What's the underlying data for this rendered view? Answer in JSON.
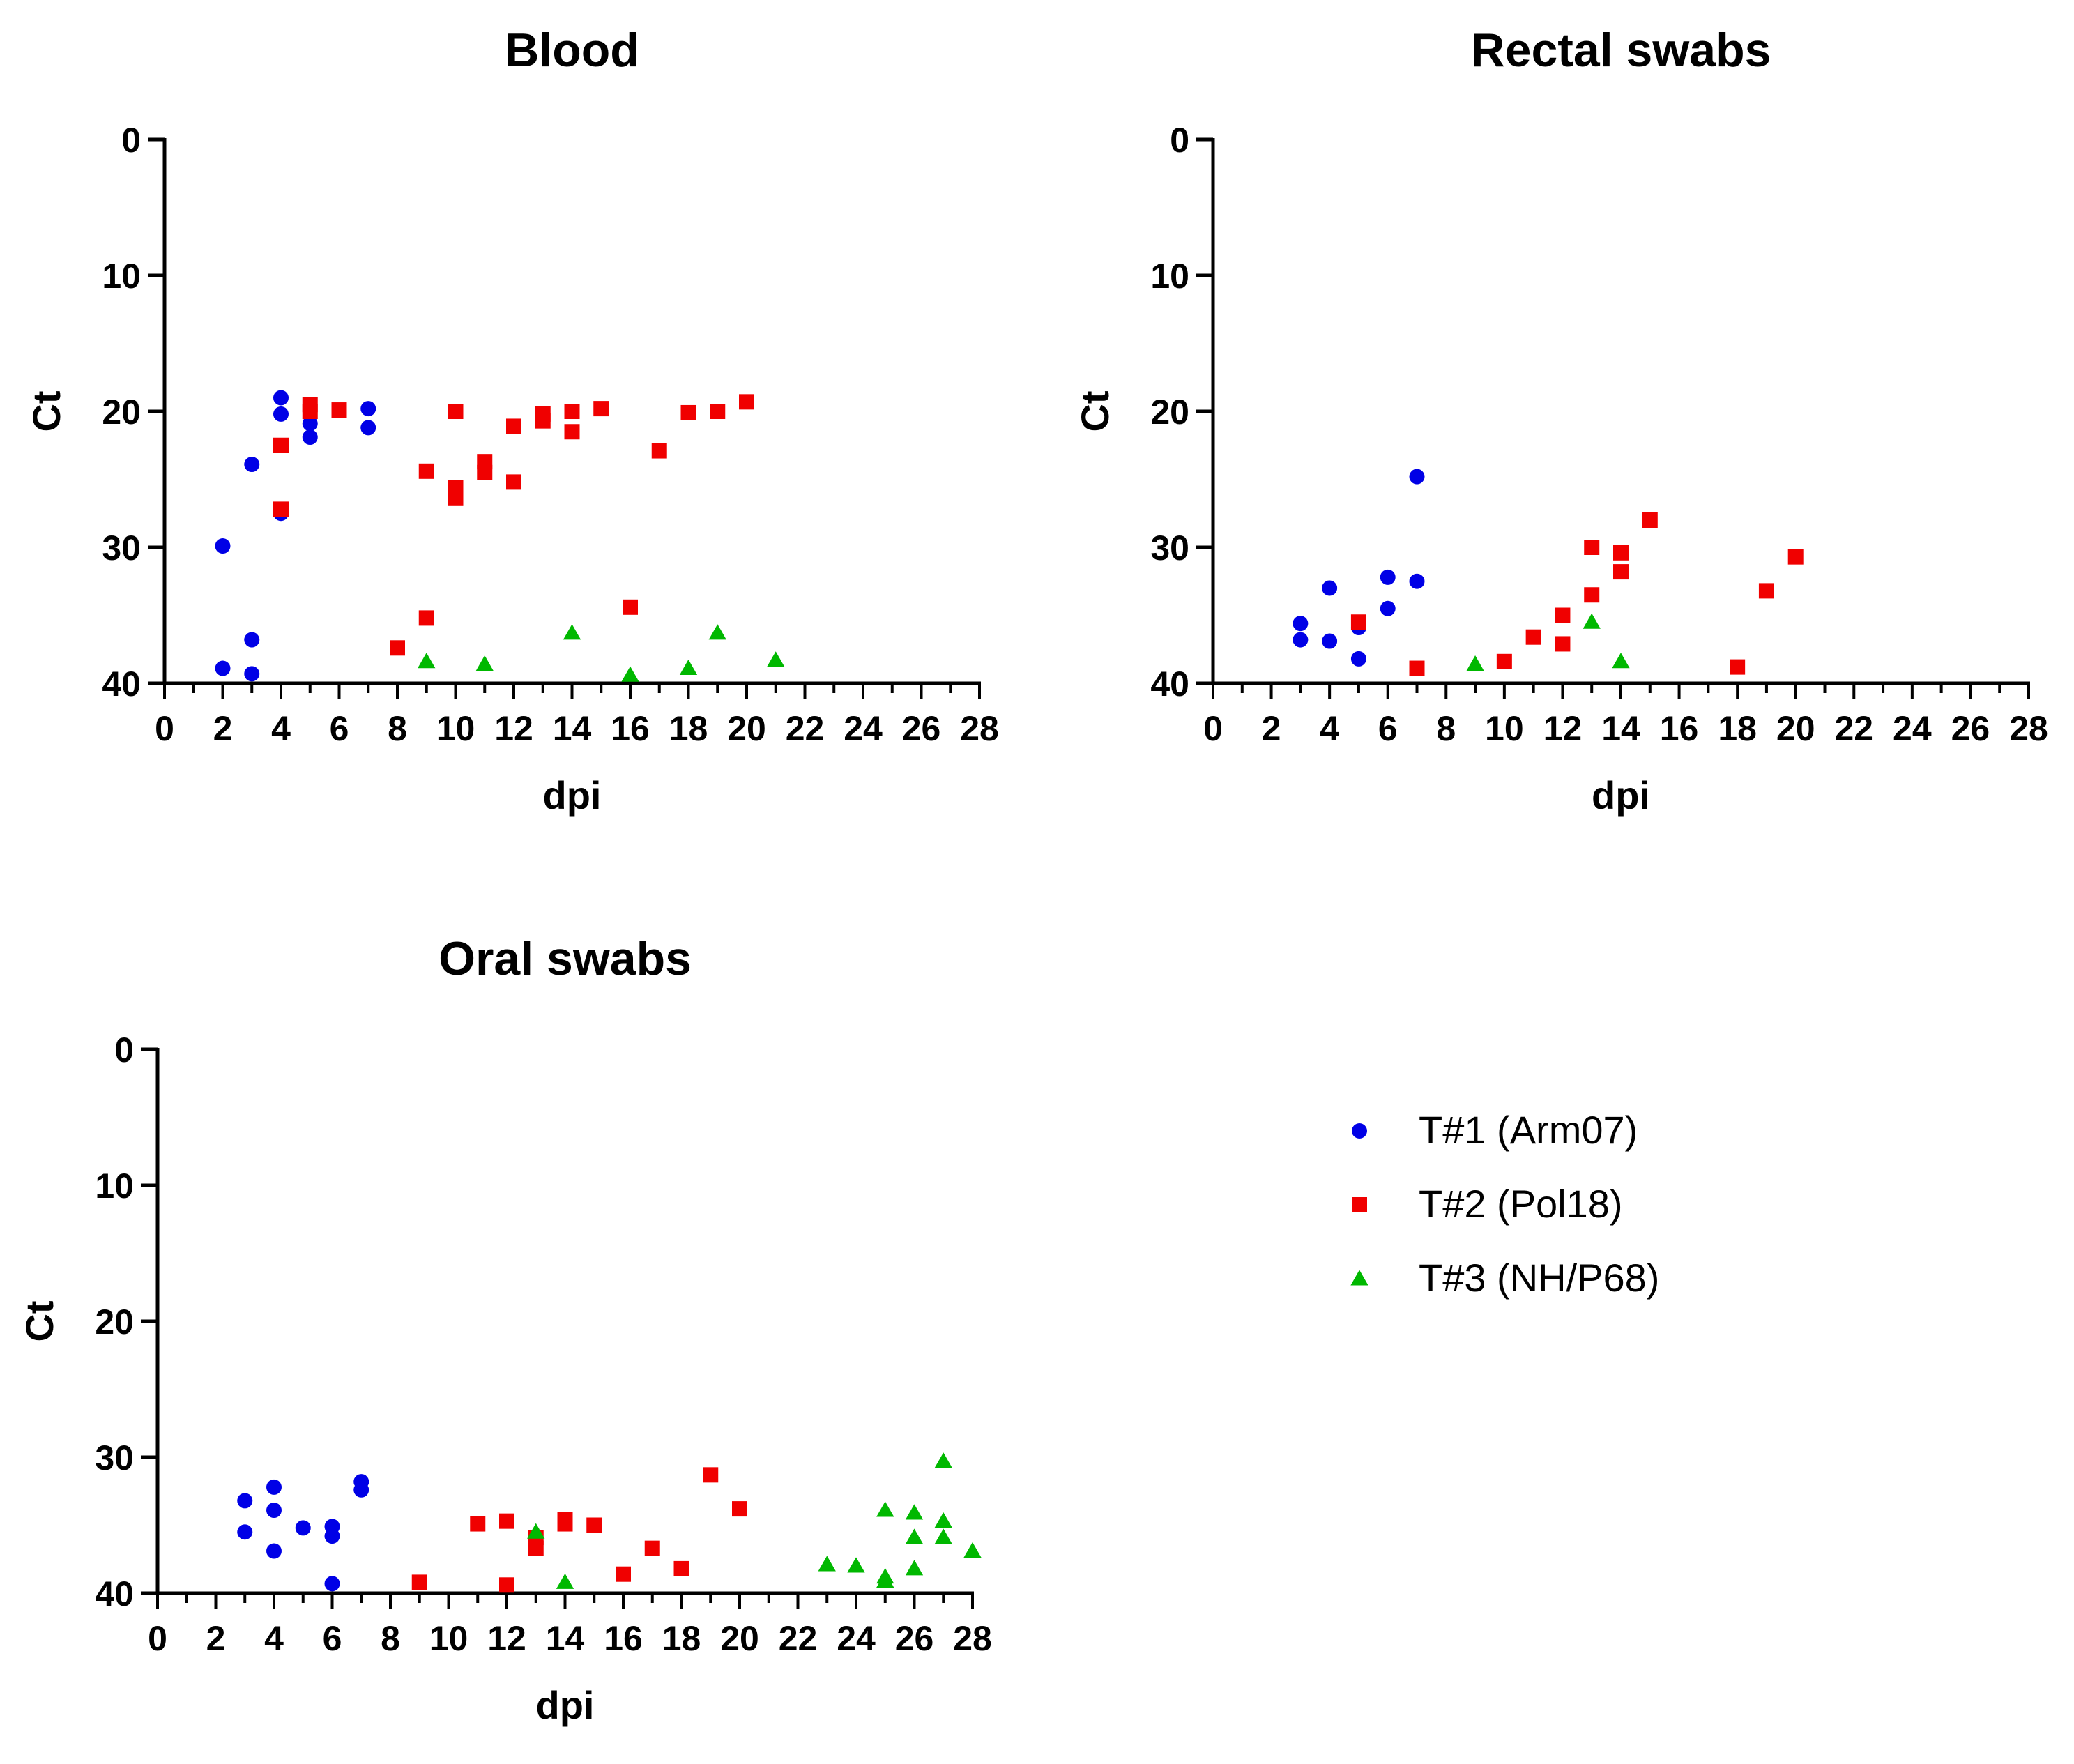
{
  "colors": {
    "T1": "#0000e6",
    "T2": "#f00000",
    "T3": "#00b800",
    "axis": "#000000"
  },
  "legend": [
    {
      "key": "T1",
      "label": "T#1 (Arm07)",
      "marker": "circle"
    },
    {
      "key": "T2",
      "label": "T#2 (Pol18)",
      "marker": "square"
    },
    {
      "key": "T3",
      "label": "T#3 (NH/P68)",
      "marker": "triangle"
    }
  ],
  "chart_data": [
    {
      "id": "blood",
      "type": "scatter",
      "title": "Blood",
      "xlabel": "dpi",
      "ylabel": "Ct",
      "xlim": [
        0,
        28
      ],
      "ylim": [
        0,
        40
      ],
      "y_inverted": true,
      "xticks": [
        0,
        2,
        4,
        6,
        8,
        10,
        12,
        14,
        16,
        18,
        20,
        22,
        24,
        26,
        28
      ],
      "yticks": [
        0,
        10,
        20,
        30,
        40
      ],
      "series": [
        {
          "name": "T#1 (Arm07)",
          "key": "T1",
          "marker": "circle",
          "points": [
            [
              2,
              29.9
            ],
            [
              2,
              38.9
            ],
            [
              3,
              23.9
            ],
            [
              3,
              36.8
            ],
            [
              3,
              39.3
            ],
            [
              4,
              19.0
            ],
            [
              4,
              20.2
            ],
            [
              4,
              27.5
            ],
            [
              5,
              20.9
            ],
            [
              5,
              21.9
            ],
            [
              7,
              19.8
            ],
            [
              7,
              21.2
            ]
          ]
        },
        {
          "name": "T#2 (Pol18)",
          "key": "T2",
          "marker": "square",
          "points": [
            [
              4,
              22.5
            ],
            [
              4,
              27.2
            ],
            [
              5,
              19.5
            ],
            [
              5,
              20.0
            ],
            [
              6,
              19.9
            ],
            [
              8,
              37.4
            ],
            [
              9,
              24.4
            ],
            [
              9,
              35.2
            ],
            [
              10,
              20.0
            ],
            [
              10,
              25.6
            ],
            [
              10,
              26.4
            ],
            [
              11,
              23.7
            ],
            [
              11,
              24.5
            ],
            [
              12,
              21.1
            ],
            [
              12,
              25.2
            ],
            [
              13,
              20.2
            ],
            [
              13,
              20.7
            ],
            [
              14,
              20.0
            ],
            [
              14,
              21.5
            ],
            [
              15,
              19.8
            ],
            [
              16,
              34.4
            ],
            [
              17,
              22.9
            ],
            [
              18,
              20.1
            ],
            [
              19,
              20.0
            ],
            [
              20,
              19.3
            ]
          ]
        },
        {
          "name": "T#3 (NH/P68)",
          "key": "T3",
          "marker": "triangle",
          "points": [
            [
              9,
              38.4
            ],
            [
              11,
              38.6
            ],
            [
              14,
              36.3
            ],
            [
              16,
              39.4
            ],
            [
              18,
              38.9
            ],
            [
              19,
              36.3
            ],
            [
              21,
              38.3
            ]
          ]
        }
      ]
    },
    {
      "id": "rectal",
      "type": "scatter",
      "title": "Rectal swabs",
      "xlabel": "dpi",
      "ylabel": "Ct",
      "xlim": [
        0,
        28
      ],
      "ylim": [
        0,
        40
      ],
      "y_inverted": true,
      "xticks": [
        0,
        2,
        4,
        6,
        8,
        10,
        12,
        14,
        16,
        18,
        20,
        22,
        24,
        26,
        28
      ],
      "yticks": [
        0,
        10,
        20,
        30,
        40
      ],
      "series": [
        {
          "name": "T#1 (Arm07)",
          "key": "T1",
          "marker": "circle",
          "points": [
            [
              3,
              35.6
            ],
            [
              3,
              36.8
            ],
            [
              4,
              33.0
            ],
            [
              4,
              36.9
            ],
            [
              5,
              35.9
            ],
            [
              5,
              38.2
            ],
            [
              6,
              32.2
            ],
            [
              6,
              34.5
            ],
            [
              7,
              24.8
            ],
            [
              7,
              32.5
            ]
          ]
        },
        {
          "name": "T#2 (Pol18)",
          "key": "T2",
          "marker": "square",
          "points": [
            [
              5,
              35.5
            ],
            [
              7,
              38.9
            ],
            [
              10,
              38.4
            ],
            [
              11,
              36.6
            ],
            [
              12,
              35.0
            ],
            [
              12,
              37.1
            ],
            [
              13,
              30.0
            ],
            [
              13,
              33.5
            ],
            [
              14,
              30.4
            ],
            [
              14,
              31.8
            ],
            [
              15,
              28.0
            ],
            [
              18,
              38.8
            ],
            [
              19,
              33.2
            ],
            [
              20,
              30.7
            ]
          ]
        },
        {
          "name": "T#3 (NH/P68)",
          "key": "T3",
          "marker": "triangle",
          "points": [
            [
              9,
              38.6
            ],
            [
              13,
              35.5
            ],
            [
              14,
              38.4
            ]
          ]
        }
      ]
    },
    {
      "id": "oral",
      "type": "scatter",
      "title": "Oral swabs",
      "xlabel": "dpi",
      "ylabel": "Ct",
      "xlim": [
        0,
        28
      ],
      "ylim": [
        0,
        40
      ],
      "y_inverted": true,
      "xticks": [
        0,
        2,
        4,
        6,
        8,
        10,
        12,
        14,
        16,
        18,
        20,
        22,
        24,
        26,
        28
      ],
      "yticks": [
        0,
        10,
        20,
        30,
        40
      ],
      "series": [
        {
          "name": "T#1 (Arm07)",
          "key": "T1",
          "marker": "circle",
          "points": [
            [
              3,
              33.2
            ],
            [
              3,
              35.5
            ],
            [
              4,
              32.2
            ],
            [
              4,
              33.9
            ],
            [
              4,
              36.9
            ],
            [
              5,
              35.2
            ],
            [
              6,
              35.1
            ],
            [
              6,
              35.8
            ],
            [
              6,
              39.3
            ],
            [
              7,
              31.8
            ],
            [
              7,
              32.4
            ]
          ]
        },
        {
          "name": "T#2 (Pol18)",
          "key": "T2",
          "marker": "square",
          "points": [
            [
              9,
              39.2
            ],
            [
              11,
              34.9
            ],
            [
              12,
              34.7
            ],
            [
              12,
              39.4
            ],
            [
              13,
              35.9
            ],
            [
              13,
              36.7
            ],
            [
              14,
              34.6
            ],
            [
              14,
              34.9
            ],
            [
              15,
              35.0
            ],
            [
              16,
              38.6
            ],
            [
              17,
              36.7
            ],
            [
              18,
              38.2
            ],
            [
              19,
              31.3
            ],
            [
              20,
              33.8
            ]
          ]
        },
        {
          "name": "T#3 (NH/P68)",
          "key": "T3",
          "marker": "triangle",
          "points": [
            [
              13,
              35.5
            ],
            [
              14,
              39.2
            ],
            [
              23,
              37.9
            ],
            [
              24,
              38.0
            ],
            [
              25,
              33.9
            ],
            [
              25,
              38.8
            ],
            [
              25,
              39.1
            ],
            [
              26,
              34.1
            ],
            [
              26,
              35.9
            ],
            [
              26,
              38.2
            ],
            [
              27,
              30.3
            ],
            [
              27,
              34.7
            ],
            [
              27,
              35.9
            ],
            [
              28,
              36.9
            ]
          ]
        }
      ]
    }
  ]
}
